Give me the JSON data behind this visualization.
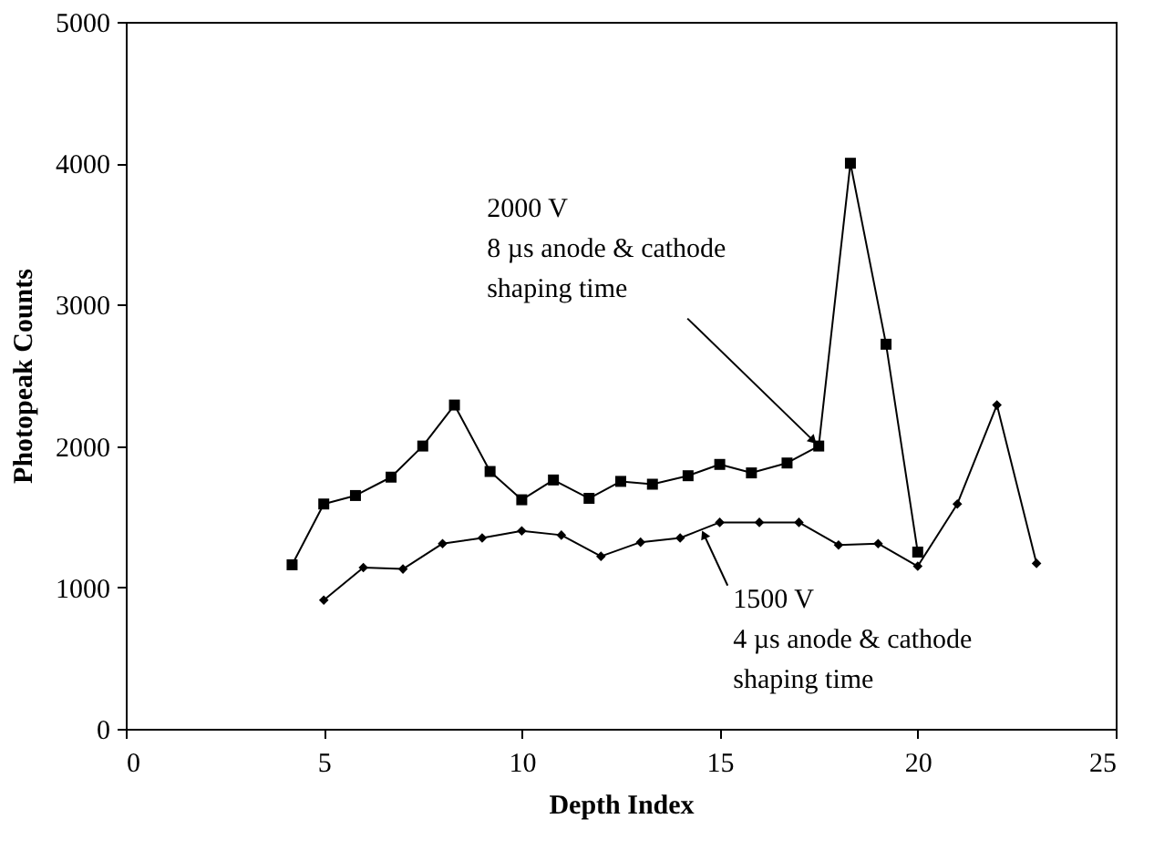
{
  "chart_data": {
    "type": "line",
    "xlabel": "Depth Index",
    "ylabel": "Photopeak Counts",
    "xlim": [
      0,
      25
    ],
    "xticks": [
      0,
      5,
      10,
      15,
      20,
      25
    ],
    "ylim": [
      0,
      5000
    ],
    "yticks": [
      0,
      1000,
      2000,
      3000,
      4000,
      5000
    ],
    "line_style": "solid",
    "series": [
      {
        "color": "#000000",
        "marker": "square",
        "x": [
          4.2,
          5,
          5.8,
          6.7,
          7.5,
          8.3,
          9.2,
          10,
          10.8,
          11.7,
          12.5,
          13.3,
          14.2,
          15,
          15.8,
          16.7,
          17.5,
          18.3,
          19.2,
          20
        ],
        "values": [
          1160,
          1590,
          1650,
          1780,
          2000,
          2290,
          1820,
          1620,
          1760,
          1630,
          1750,
          1730,
          1790,
          1870,
          1810,
          1880,
          2000,
          4000,
          2720,
          1250
        ]
      },
      {
        "color": "#000000",
        "marker": "diamond",
        "x": [
          5,
          6,
          7,
          8,
          9,
          10,
          11,
          12,
          13,
          14,
          15,
          16,
          17,
          18,
          19,
          20,
          21,
          22,
          23
        ],
        "values": [
          910,
          1140,
          1130,
          1310,
          1350,
          1400,
          1370,
          1220,
          1320,
          1350,
          1460,
          1460,
          1460,
          1300,
          1310,
          1150,
          1590,
          2290,
          1170
        ]
      }
    ],
    "annotations": [
      {
        "text": "2000 V\n8 µs anode & cathode\nshaping time",
        "x": 17.5,
        "y": 2000
      },
      {
        "text": "1500 V\n4 µs anode & cathode\nshaping time",
        "x": 14.6,
        "y": 1400
      }
    ]
  }
}
